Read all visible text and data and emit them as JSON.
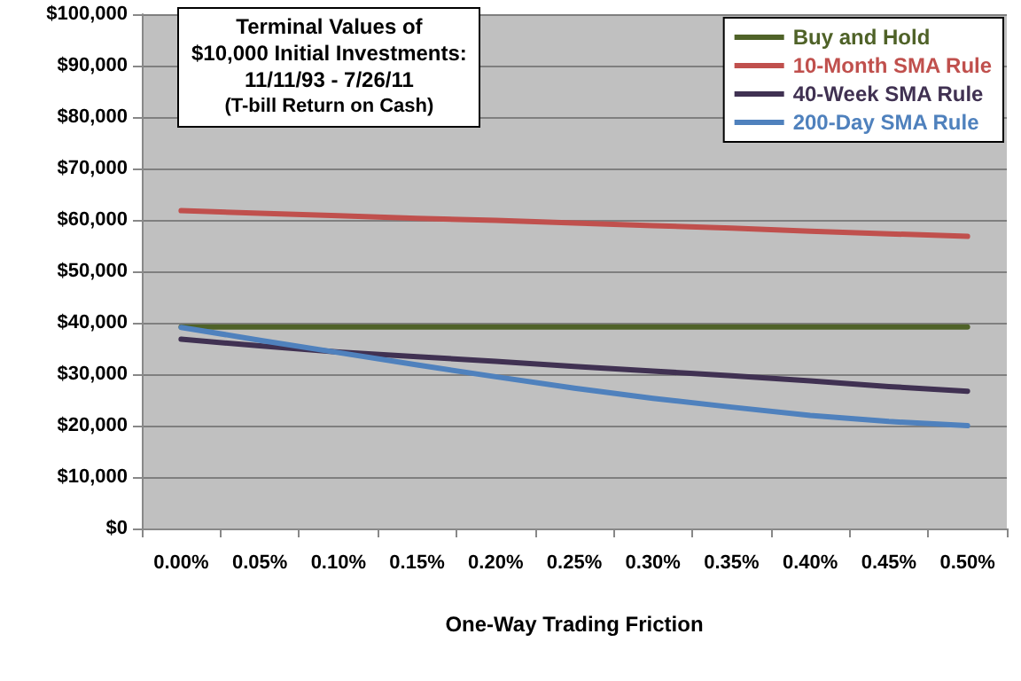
{
  "chart_data": {
    "type": "line",
    "title": "Terminal Values of\n$10,000 Initial Investments:\n11/11/93 - 7/26/11",
    "subtitle": "(T-bill Return on Cash)",
    "xlabel": "One-Way Trading Friction",
    "categories": [
      "0.00%",
      "0.05%",
      "0.10%",
      "0.15%",
      "0.20%",
      "0.25%",
      "0.30%",
      "0.35%",
      "0.40%",
      "0.45%",
      "0.50%"
    ],
    "series": [
      {
        "name": "Buy and Hold",
        "color": "#4f6228",
        "values": [
          39200,
          39200,
          39200,
          39200,
          39200,
          39200,
          39200,
          39200,
          39200,
          39200,
          39200
        ]
      },
      {
        "name": "10-Month SMA Rule",
        "color": "#c0504d",
        "values": [
          61800,
          61300,
          60800,
          60300,
          59900,
          59400,
          58900,
          58400,
          57800,
          57300,
          56800
        ]
      },
      {
        "name": "40-Week SMA Rule",
        "color": "#403152",
        "values": [
          36800,
          35500,
          34300,
          33400,
          32500,
          31500,
          30600,
          29700,
          28700,
          27600,
          26700
        ]
      },
      {
        "name": "200-Day SMA Rule",
        "color": "#4f81bd",
        "values": [
          39100,
          36600,
          34200,
          31800,
          29500,
          27300,
          25300,
          23600,
          22000,
          20800,
          20000
        ]
      }
    ],
    "ylim": [
      0,
      100000
    ],
    "yticks": [
      {
        "value": 0,
        "label": "$0"
      },
      {
        "value": 10000,
        "label": "$10,000"
      },
      {
        "value": 20000,
        "label": "$20,000"
      },
      {
        "value": 30000,
        "label": "$30,000"
      },
      {
        "value": 40000,
        "label": "$40,000"
      },
      {
        "value": 50000,
        "label": "$50,000"
      },
      {
        "value": 60000,
        "label": "$60,000"
      },
      {
        "value": 70000,
        "label": "$70,000"
      },
      {
        "value": 80000,
        "label": "$80,000"
      },
      {
        "value": 90000,
        "label": "$90,000"
      },
      {
        "value": 100000,
        "label": "$100,000"
      }
    ],
    "grid": "y",
    "legend": "top right",
    "marker": "none",
    "line_style": "solid"
  }
}
